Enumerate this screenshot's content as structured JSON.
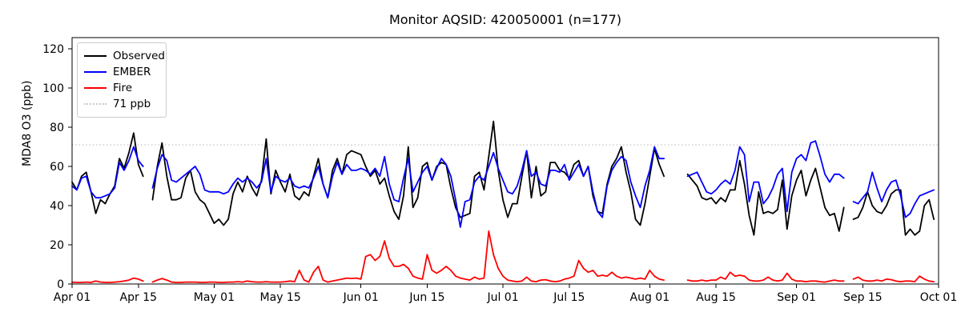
{
  "chart_data": {
    "type": "line",
    "title": "Monitor AQSID: 420050001 (n=177)",
    "xlabel": "",
    "ylabel": "MDA8 O3 (ppb)",
    "n_points_label": "n=177",
    "x_days_span": 183,
    "ylim": [
      0,
      125.7
    ],
    "y_ticks": [
      0,
      20,
      40,
      60,
      80,
      100,
      120
    ],
    "x_ticks": [
      {
        "label": "Apr 01",
        "day": 0
      },
      {
        "label": "Apr 15",
        "day": 14
      },
      {
        "label": "May 01",
        "day": 30
      },
      {
        "label": "May 15",
        "day": 44
      },
      {
        "label": "Jun 01",
        "day": 61
      },
      {
        "label": "Jun 15",
        "day": 75
      },
      {
        "label": "Jul 01",
        "day": 91
      },
      {
        "label": "Jul 15",
        "day": 105
      },
      {
        "label": "Aug 01",
        "day": 122
      },
      {
        "label": "Aug 15",
        "day": 136
      },
      {
        "label": "Sep 01",
        "day": 153
      },
      {
        "label": "Sep 15",
        "day": 167
      },
      {
        "label": "Oct 01",
        "day": 183
      }
    ],
    "threshold": {
      "label": "71 ppb",
      "value": 71,
      "color": "#c9c9c9",
      "style": "dotted"
    },
    "legend_position": "upper-left",
    "grid": false,
    "series": [
      {
        "name": "Observed",
        "color": "#000000",
        "values": [
          52,
          48,
          55,
          57,
          47,
          36,
          43,
          41,
          46,
          50,
          64,
          59,
          67,
          77,
          61,
          55,
          null,
          43,
          60,
          72,
          55,
          43,
          43,
          44,
          54,
          58,
          47,
          43,
          41,
          36,
          31,
          33,
          30,
          33,
          46,
          52,
          47,
          55,
          49,
          45,
          53,
          74,
          46,
          58,
          52,
          47,
          56,
          45,
          43,
          47,
          45,
          55,
          64,
          51,
          44,
          58,
          64,
          56,
          66,
          68,
          67,
          66,
          60,
          55,
          58,
          51,
          54,
          45,
          37,
          33,
          45,
          70,
          39,
          44,
          60,
          62,
          53,
          60,
          62,
          61,
          49,
          39,
          34,
          35,
          36,
          55,
          57,
          48,
          65,
          83,
          58,
          43,
          34,
          41,
          41,
          55,
          68,
          44,
          60,
          45,
          47,
          62,
          62,
          58,
          57,
          54,
          61,
          63,
          55,
          60,
          45,
          37,
          36,
          51,
          60,
          64,
          70,
          57,
          47,
          33,
          30,
          41,
          55,
          69,
          61,
          55,
          null,
          null,
          null,
          null,
          56,
          53,
          50,
          44,
          43,
          44,
          41,
          44,
          42,
          48,
          48,
          63,
          51,
          35,
          25,
          47,
          36,
          37,
          36,
          38,
          53,
          28,
          45,
          53,
          58,
          45,
          53,
          59,
          49,
          39,
          35,
          36,
          27,
          39,
          null,
          33,
          34,
          39,
          47,
          40,
          37,
          36,
          40,
          46,
          48,
          48,
          25,
          28,
          25,
          27,
          40,
          43,
          33
        ]
      },
      {
        "name": "EMBER",
        "color": "#0000ff",
        "values": [
          50,
          48,
          54,
          55,
          47,
          44,
          44,
          45,
          46,
          49,
          62,
          58,
          63,
          70,
          63,
          60,
          null,
          49,
          59,
          66,
          63,
          53,
          52,
          54,
          56,
          58,
          60,
          56,
          48,
          47,
          47,
          47,
          46,
          47,
          51,
          54,
          52,
          54,
          52,
          49,
          52,
          64,
          47,
          55,
          53,
          52,
          54,
          50,
          49,
          50,
          49,
          54,
          60,
          51,
          44,
          55,
          62,
          56,
          61,
          58,
          58,
          59,
          58,
          56,
          59,
          55,
          65,
          51,
          43,
          42,
          54,
          64,
          47,
          52,
          57,
          60,
          53,
          59,
          64,
          61,
          55,
          43,
          29,
          42,
          43,
          52,
          55,
          53,
          60,
          67,
          59,
          53,
          47,
          46,
          50,
          58,
          68,
          55,
          57,
          51,
          50,
          58,
          58,
          57,
          61,
          53,
          57,
          61,
          55,
          60,
          47,
          37,
          34,
          50,
          58,
          62,
          65,
          63,
          52,
          45,
          39,
          50,
          58,
          70,
          64,
          64,
          null,
          null,
          null,
          null,
          55,
          56,
          57,
          52,
          47,
          46,
          48,
          51,
          53,
          51,
          58,
          70,
          66,
          42,
          52,
          52,
          41,
          44,
          49,
          56,
          59,
          37,
          57,
          64,
          66,
          63,
          72,
          73,
          65,
          56,
          52,
          56,
          56,
          54,
          null,
          42,
          41,
          44,
          47,
          57,
          49,
          42,
          48,
          52,
          53,
          45,
          34,
          36,
          41,
          45,
          46,
          47,
          48
        ]
      },
      {
        "name": "Fire",
        "color": "#ff0000",
        "values": [
          1,
          0.8,
          0.8,
          1,
          0.8,
          1.5,
          1,
          0.8,
          0.8,
          1,
          1.2,
          1.5,
          2,
          3,
          2.5,
          1.5,
          null,
          1,
          2,
          2.8,
          2,
          1,
          0.8,
          0.8,
          1,
          1,
          1,
          0.8,
          0.8,
          1,
          1,
          0.8,
          0.8,
          1,
          1,
          1.2,
          1,
          1.5,
          1.2,
          1,
          1,
          1.2,
          1,
          1,
          1,
          1.2,
          1.5,
          1.2,
          7,
          2,
          1,
          6,
          9,
          2,
          1,
          1.5,
          2,
          2.5,
          3,
          2.8,
          3,
          2.5,
          14,
          15,
          12,
          14,
          22,
          13,
          9,
          9,
          10,
          8,
          4,
          3,
          2.5,
          15,
          7,
          5.5,
          7,
          9,
          7,
          4,
          3,
          2.5,
          2,
          3.5,
          2.5,
          3,
          27,
          15,
          8,
          4,
          2,
          1.5,
          1.2,
          1.5,
          3.5,
          1.5,
          1.2,
          2,
          2.2,
          1.5,
          1.2,
          1.5,
          2.5,
          3,
          4,
          12,
          8,
          6,
          7,
          4,
          4.5,
          4,
          6,
          4,
          3,
          3.5,
          3,
          2.5,
          3,
          2.5,
          7,
          4,
          2.5,
          2,
          null,
          null,
          null,
          null,
          2,
          1.5,
          1.5,
          2,
          1.5,
          2,
          2,
          3.5,
          2.5,
          6,
          4,
          4.5,
          4,
          2,
          1.5,
          1.5,
          2,
          3.5,
          2,
          1.5,
          2,
          5.5,
          2.5,
          1.5,
          1.5,
          1.2,
          1.5,
          1.5,
          1.2,
          1,
          1.5,
          2,
          1.5,
          1.5,
          null,
          2.5,
          3.5,
          2,
          1.5,
          1.5,
          2,
          1.5,
          2.5,
          2.2,
          1.5,
          1.2,
          1.5,
          1.5,
          1.2,
          4,
          2.5,
          1.5,
          1.2
        ]
      }
    ]
  }
}
